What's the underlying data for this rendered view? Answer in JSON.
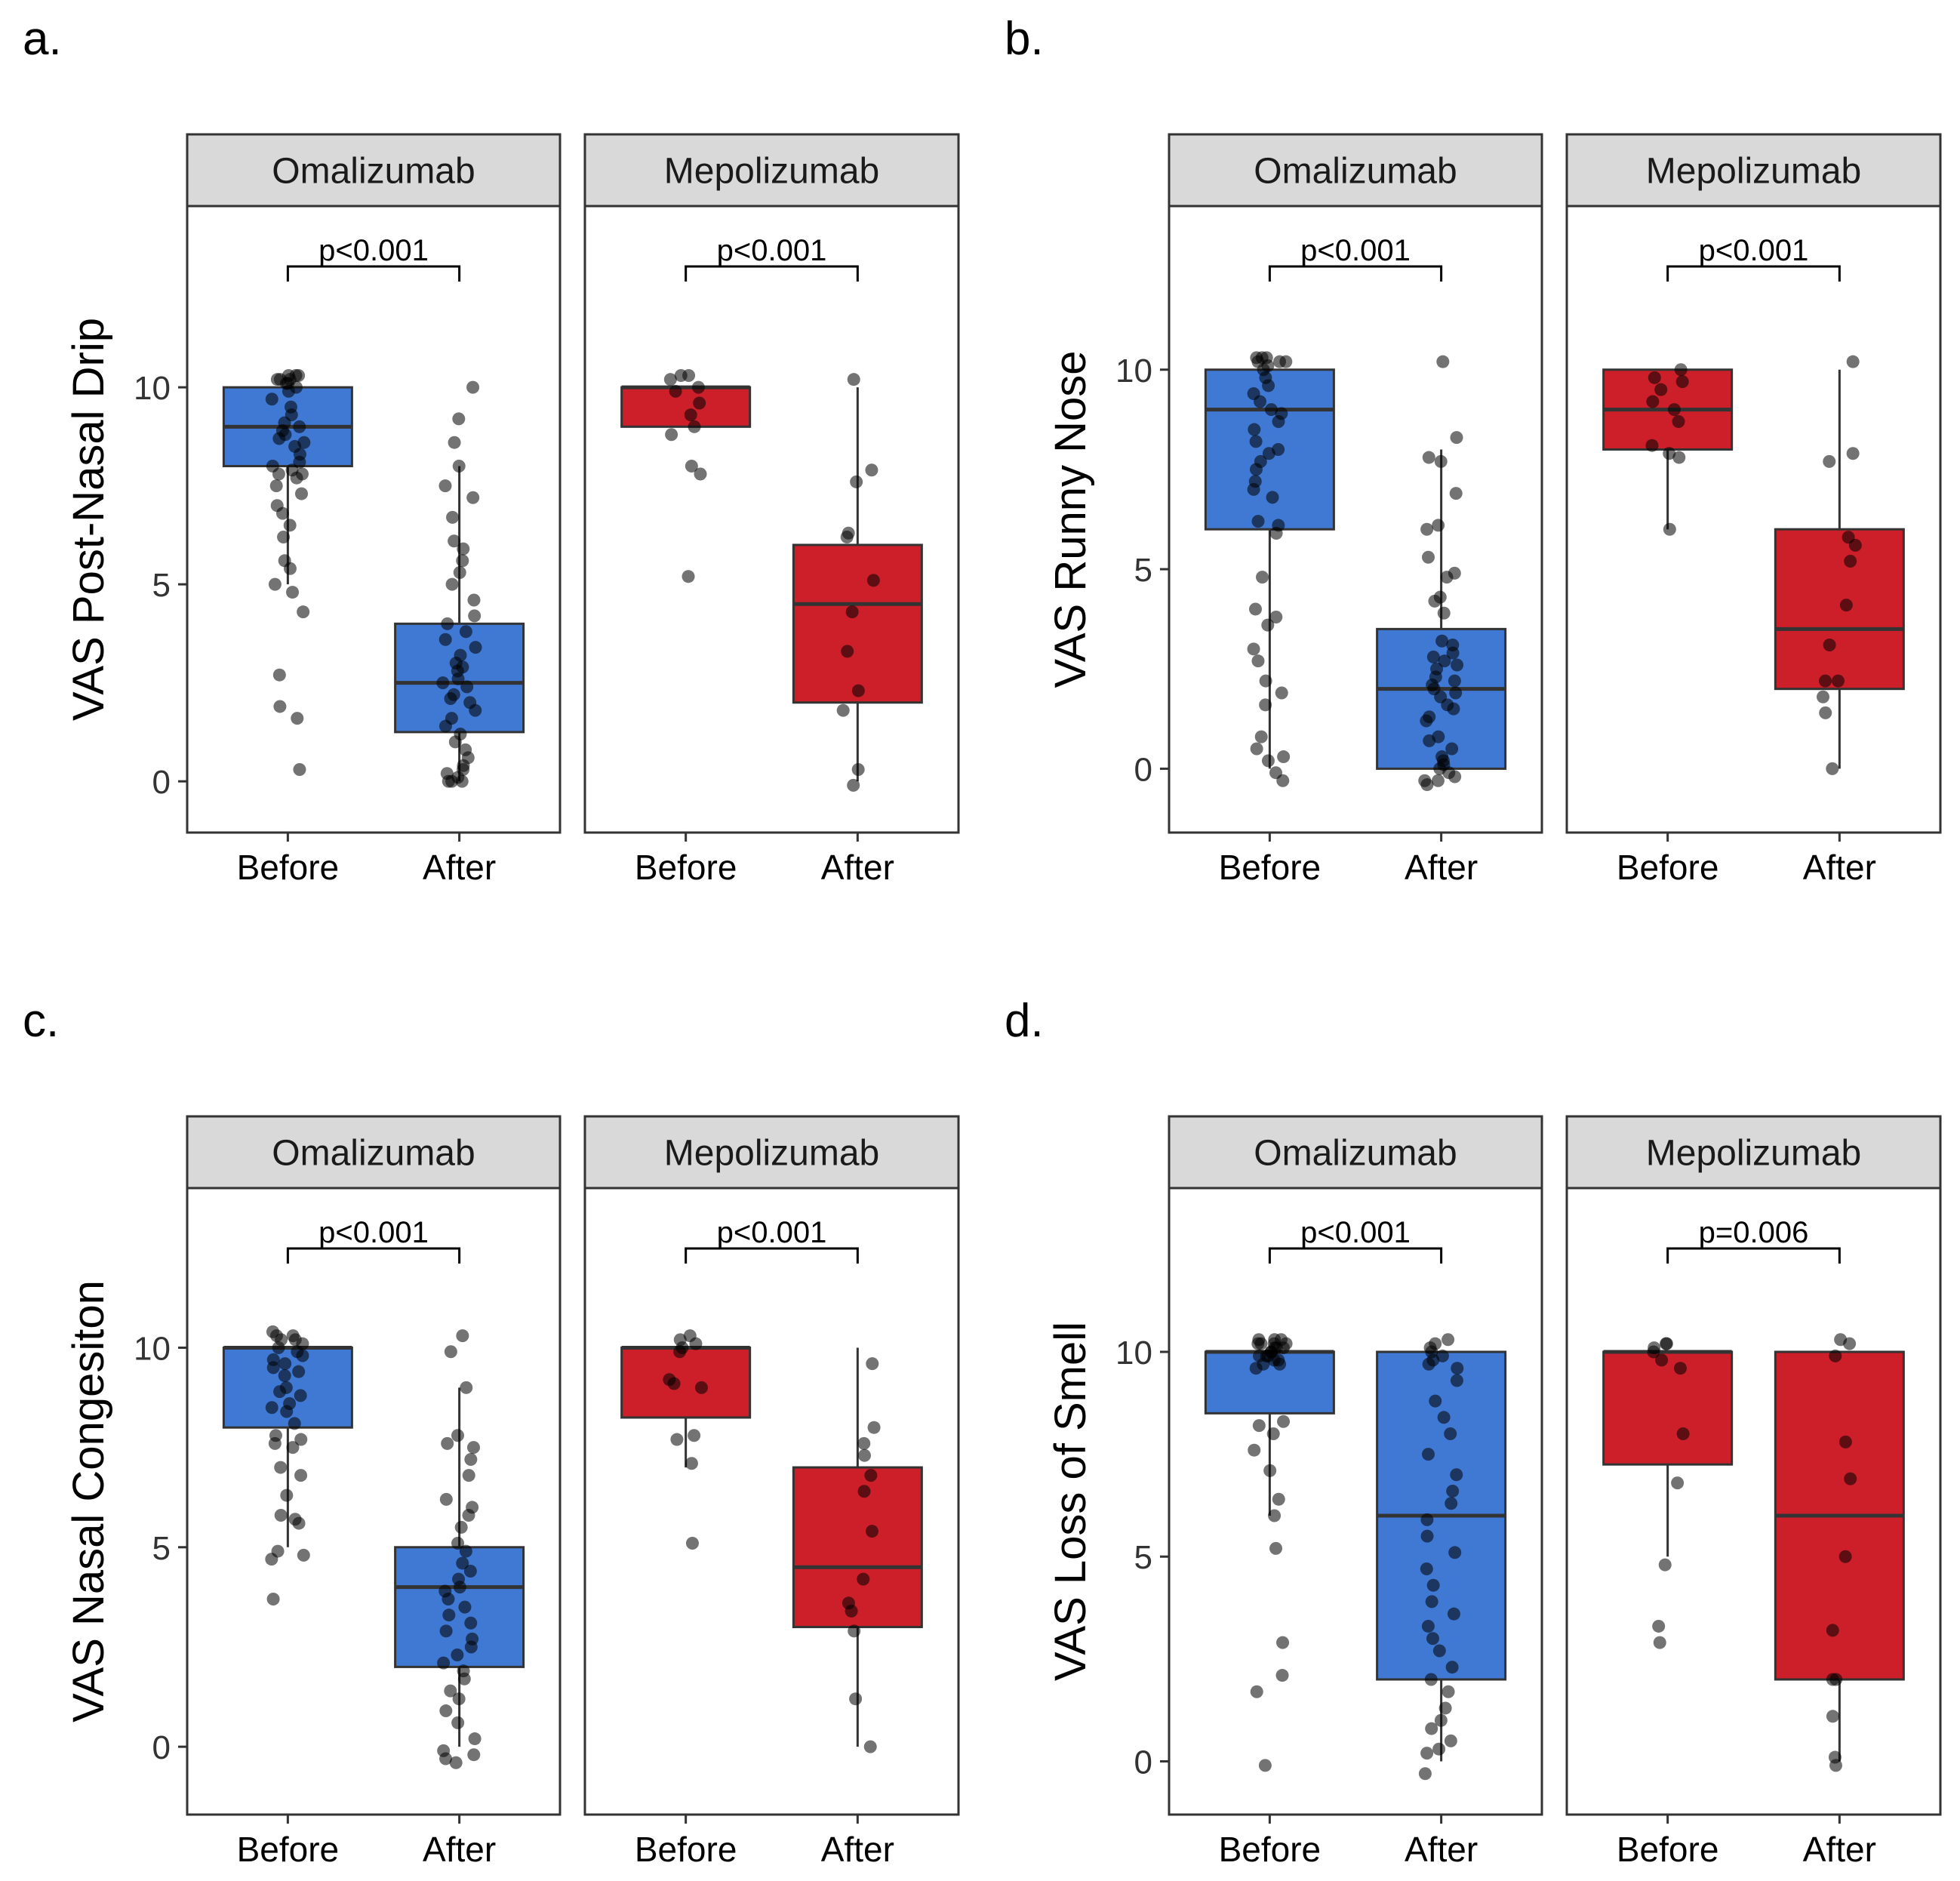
{
  "figure": {
    "background": "#ffffff"
  },
  "colors": {
    "omalizumab_fill": "#3f79d4",
    "mepolizumab_fill": "#cd1f2a",
    "strip_fill": "#d9d9d9",
    "point": "#000000",
    "frame": "#333333"
  },
  "chart_data": [
    {
      "type": "boxplot",
      "panel_label": "a.",
      "ylabel": "VAS Post-Nasal Drip",
      "ylim": [
        -1.3,
        14.6
      ],
      "yticks": [
        0,
        5,
        10
      ],
      "ytick_labels": [
        "0",
        "5",
        "10"
      ],
      "categories": [
        "Before",
        "After"
      ],
      "facets": [
        {
          "name": "Omalizumab",
          "fill": "#3f79d4",
          "annotation": "p<0.001",
          "groups": [
            {
              "category": "Before",
              "q1": 8,
              "median": 9,
              "q3": 10,
              "whisker_low": 5,
              "whisker_high": 10,
              "points": [
                10.2,
                10.3,
                10.2,
                10.1,
                10.2,
                10.3,
                10,
                10.1,
                9.9,
                10.3,
                9.7,
                9.5,
                9.3,
                9.1,
                9.0,
                8.9,
                8.8,
                8.7,
                8.6,
                8.5,
                8.3,
                8.1,
                8.0,
                7.9,
                7.8,
                7.8,
                7.7,
                7.5,
                7.3,
                7.0,
                6.8,
                6.5,
                6.2,
                5.6,
                5.4,
                5.0,
                4.8,
                4.3,
                2.7,
                1.9,
                1.6,
                0.3
              ]
            },
            {
              "category": "After",
              "q1": 1.25,
              "median": 2.5,
              "q3": 4,
              "whisker_low": 0,
              "whisker_high": 8,
              "points": [
                10.0,
                9.2,
                8.6,
                8.0,
                7.5,
                7.2,
                6.7,
                6.1,
                5.9,
                5.6,
                5.3,
                5.0,
                4.6,
                4.2,
                4.0,
                3.8,
                3.6,
                3.4,
                3.2,
                3.0,
                2.9,
                2.8,
                2.6,
                2.5,
                2.4,
                2.2,
                2.1,
                2.0,
                1.8,
                1.6,
                1.4,
                1.2,
                1.0,
                0.8,
                0.6,
                0.4,
                0.3,
                0.2,
                0.1,
                0.0,
                0.0,
                0.0
              ]
            }
          ]
        },
        {
          "name": "Mepolizumab",
          "fill": "#cd1f2a",
          "annotation": "p<0.001",
          "groups": [
            {
              "category": "Before",
              "q1": 9,
              "median": 10,
              "q3": 10,
              "whisker_low": 9,
              "whisker_high": 10,
              "points": [
                10.3,
                10.2,
                10.3,
                10.0,
                9.9,
                9.6,
                9.3,
                9.0,
                8.8,
                8.0,
                7.8,
                5.2
              ]
            },
            {
              "category": "After",
              "q1": 2,
              "median": 4.5,
              "q3": 6,
              "whisker_low": 0,
              "whisker_high": 10,
              "points": [
                10.2,
                7.9,
                7.6,
                6.3,
                6.2,
                5.1,
                4.3,
                3.3,
                2.3,
                1.8,
                0.3,
                -0.1
              ]
            }
          ]
        }
      ]
    },
    {
      "type": "boxplot",
      "panel_label": "b.",
      "ylabel": "VAS Runny  Nose",
      "ylim": [
        -1.6,
        14.1
      ],
      "yticks": [
        0,
        5,
        10
      ],
      "ytick_labels": [
        "0",
        "5",
        "10"
      ],
      "categories": [
        "Before",
        "After"
      ],
      "facets": [
        {
          "name": "Omalizumab",
          "fill": "#3f79d4",
          "annotation": "p<0.001",
          "groups": [
            {
              "category": "Before",
              "q1": 6,
              "median": 9,
              "q3": 10,
              "whisker_low": 0,
              "whisker_high": 10,
              "points": [
                10.3,
                10.2,
                10.3,
                10.1,
                10.2,
                10.3,
                10.0,
                10.2,
                9.8,
                9.6,
                9.4,
                9.2,
                9.0,
                8.9,
                8.7,
                8.5,
                8.2,
                8.0,
                7.9,
                7.7,
                7.5,
                7.2,
                7.0,
                6.8,
                6.2,
                6.1,
                5.9,
                4.8,
                4.0,
                3.8,
                3.6,
                3.0,
                2.7,
                2.2,
                1.9,
                1.6,
                0.8,
                0.5,
                0.3,
                0.2,
                -0.1,
                -0.3
              ]
            },
            {
              "category": "After",
              "q1": 0,
              "median": 2,
              "q3": 3.5,
              "whisker_low": 0,
              "whisker_high": 8,
              "points": [
                10.2,
                8.3,
                7.8,
                7.7,
                6.9,
                6.1,
                6.0,
                5.3,
                4.9,
                4.8,
                4.3,
                4.2,
                3.9,
                3.2,
                3.1,
                2.9,
                2.8,
                2.7,
                2.6,
                2.5,
                2.3,
                2.2,
                2.1,
                2.0,
                1.9,
                1.8,
                1.6,
                1.5,
                1.3,
                1.2,
                0.8,
                0.7,
                0.5,
                0.3,
                0.2,
                0.1,
                0.0,
                -0.1,
                -0.2,
                -0.3,
                -0.3,
                -0.4
              ]
            }
          ]
        },
        {
          "name": "Mepolizumab",
          "fill": "#cd1f2a",
          "annotation": "p<0.001",
          "groups": [
            {
              "category": "Before",
              "q1": 8,
              "median": 9,
              "q3": 10,
              "whisker_low": 6,
              "whisker_high": 10,
              "points": [
                10.0,
                9.8,
                9.7,
                9.5,
                9.2,
                9.0,
                8.7,
                8.1,
                7.9,
                7.8,
                6.0
              ]
            },
            {
              "category": "After",
              "q1": 2,
              "median": 3.5,
              "q3": 6,
              "whisker_low": 0,
              "whisker_high": 10,
              "points": [
                10.2,
                7.9,
                7.7,
                5.8,
                5.6,
                5.2,
                4.1,
                3.1,
                2.2,
                2.2,
                1.8,
                1.4,
                0.0
              ]
            }
          ]
        }
      ]
    },
    {
      "type": "boxplot",
      "panel_label": "c.",
      "ylabel": "VAS Nasal Congesiton",
      "ylim": [
        -1.7,
        14.0
      ],
      "yticks": [
        0,
        5,
        10
      ],
      "ytick_labels": [
        "0",
        "5",
        "10"
      ],
      "categories": [
        "Before",
        "After"
      ],
      "facets": [
        {
          "name": "Omalizumab",
          "fill": "#3f79d4",
          "annotation": "p<0.001",
          "groups": [
            {
              "category": "Before",
              "q1": 8,
              "median": 10,
              "q3": 10,
              "whisker_low": 5,
              "whisker_high": 10,
              "points": [
                10.4,
                10.3,
                10.2,
                10.3,
                10.1,
                10.2,
                10.0,
                9.9,
                9.8,
                9.7,
                9.6,
                9.5,
                9.4,
                9.3,
                9.0,
                8.9,
                8.8,
                8.6,
                8.5,
                8.4,
                8.1,
                7.8,
                7.7,
                7.6,
                7.5,
                7.0,
                6.8,
                6.3,
                5.8,
                5.7,
                5.6,
                4.9,
                4.8,
                4.7,
                3.7
              ]
            },
            {
              "category": "After",
              "q1": 2,
              "median": 4,
              "q3": 5,
              "whisker_low": 0,
              "whisker_high": 9,
              "points": [
                10.3,
                9.9,
                9.0,
                7.8,
                7.6,
                7.5,
                7.2,
                6.8,
                6.2,
                6.0,
                5.8,
                5.5,
                5.1,
                4.9,
                4.6,
                4.4,
                4.2,
                4.0,
                3.9,
                3.7,
                3.5,
                3.3,
                3.1,
                2.9,
                2.7,
                2.5,
                2.3,
                2.1,
                1.9,
                1.7,
                1.4,
                1.2,
                0.9,
                0.6,
                0.2,
                -0.1,
                -0.2,
                -0.3,
                -0.4
              ]
            }
          ]
        },
        {
          "name": "Mepolizumab",
          "fill": "#cd1f2a",
          "annotation": "p<0.001",
          "groups": [
            {
              "category": "Before",
              "q1": 8.25,
              "median": 10,
              "q3": 10,
              "whisker_low": 7,
              "whisker_high": 10,
              "points": [
                10.3,
                10.2,
                10.1,
                10.0,
                9.9,
                9.2,
                9.1,
                9.0,
                7.8,
                7.7,
                7.1,
                5.1
              ]
            },
            {
              "category": "After",
              "q1": 3,
              "median": 4.5,
              "q3": 7,
              "whisker_low": 0,
              "whisker_high": 10,
              "points": [
                9.6,
                8.0,
                7.6,
                7.3,
                6.8,
                6.4,
                5.4,
                4.2,
                3.6,
                3.4,
                2.9,
                1.2,
                0.0
              ]
            }
          ]
        }
      ]
    },
    {
      "type": "boxplot",
      "panel_label": "d.",
      "ylabel": "VAS Loss of Smell",
      "ylim": [
        -1.3,
        14.0
      ],
      "yticks": [
        0,
        5,
        10
      ],
      "ytick_labels": [
        "0",
        "5",
        "10"
      ],
      "categories": [
        "Before",
        "After"
      ],
      "facets": [
        {
          "name": "Omalizumab",
          "fill": "#3f79d4",
          "annotation": "p<0.001",
          "groups": [
            {
              "category": "Before",
              "q1": 8.5,
              "median": 10,
              "q3": 10,
              "whisker_low": 6,
              "whisker_high": 10,
              "points": [
                10.3,
                10.2,
                10.3,
                10.2,
                10.1,
                10.3,
                10.2,
                10.0,
                10.1,
                10.2,
                10.0,
                9.9,
                9.8,
                9.9,
                9.7,
                9.6,
                9.9,
                10.1,
                9.8,
                9.7,
                8.3,
                8.2,
                8.0,
                7.6,
                7.1,
                6.4,
                6.0,
                5.2,
                2.9,
                2.1,
                1.7,
                -0.1
              ]
            },
            {
              "category": "After",
              "q1": 2,
              "median": 6,
              "q3": 10,
              "whisker_low": 0,
              "whisker_high": 10,
              "points": [
                10.3,
                10.2,
                10.1,
                10.0,
                9.9,
                9.8,
                9.7,
                9.6,
                9.3,
                8.8,
                8.4,
                8.0,
                7.5,
                7.0,
                6.6,
                6.3,
                5.9,
                5.5,
                5.1,
                4.7,
                4.3,
                3.9,
                3.6,
                3.3,
                3.0,
                2.7,
                2.3,
                2.0,
                1.7,
                1.3,
                1.0,
                0.8,
                0.5,
                0.3,
                0.2,
                -0.3
              ]
            }
          ]
        },
        {
          "name": "Mepolizumab",
          "fill": "#cd1f2a",
          "annotation": "p=0.006",
          "groups": [
            {
              "category": "Before",
              "q1": 7.25,
              "median": 10,
              "q3": 10,
              "whisker_low": 5,
              "whisker_high": 10,
              "points": [
                10.2,
                10.1,
                10.2,
                10.0,
                9.8,
                9.6,
                8.0,
                6.8,
                4.8,
                3.3,
                2.9
              ]
            },
            {
              "category": "After",
              "q1": 2,
              "median": 6,
              "q3": 10,
              "whisker_low": 0,
              "whisker_high": 10,
              "points": [
                10.3,
                10.2,
                9.9,
                7.8,
                6.9,
                5.0,
                3.2,
                2.0,
                2.0,
                1.1,
                0.1,
                -0.1
              ]
            }
          ]
        }
      ]
    }
  ]
}
